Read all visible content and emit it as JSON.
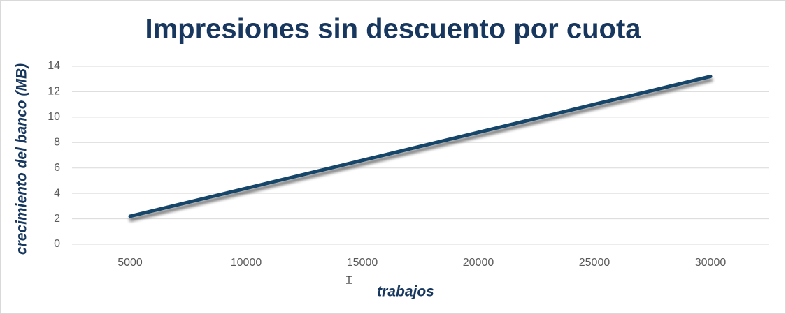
{
  "chart_data": {
    "type": "line",
    "title": "Impresiones sin descuento por cuota",
    "x_label": "trabajos",
    "y_label": "crecimiento del banco (MB)",
    "categories": [
      "5000",
      "10000",
      "15000",
      "20000",
      "25000",
      "30000"
    ],
    "values": [
      2.2,
      4.4,
      6.6,
      8.8,
      11.0,
      13.2
    ],
    "color": "#17456a",
    "ylim": [
      0,
      14
    ],
    "yticks": [
      0,
      2,
      4,
      6,
      8,
      10,
      12,
      14
    ],
    "grid": true
  }
}
